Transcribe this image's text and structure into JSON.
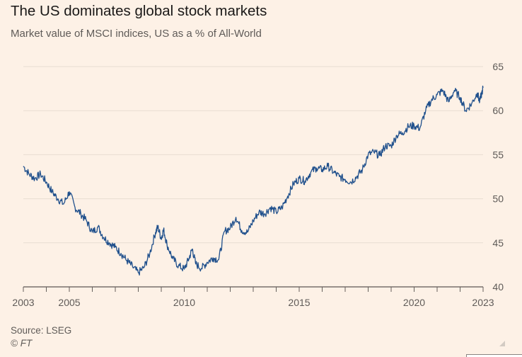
{
  "title": "The US dominates global stock markets",
  "subtitle": "Market value of MSCI indices, US as a % of All-World",
  "footer": {
    "source": "Source: LSEG",
    "credit": "© FT"
  },
  "colors": {
    "background": "#fdf1e6",
    "series": "#20508c",
    "grid": "#e8ddd2",
    "axis": "#33302e"
  },
  "chart_data": {
    "type": "line",
    "title": "The US dominates global stock markets",
    "subtitle": "Market value of MSCI indices, US as a % of All-World",
    "xlabel": "",
    "ylabel": "",
    "xlim": [
      2003,
      2023
    ],
    "ylim": [
      40,
      65
    ],
    "x_ticks": [
      2003,
      2005,
      2010,
      2015,
      2020,
      2023
    ],
    "y_ticks": [
      40,
      45,
      50,
      55,
      60,
      65
    ],
    "y_axis_position": "right",
    "grid": "horizontal",
    "legend": "none",
    "series": [
      {
        "x": [
          2003.0,
          2003.25,
          2003.5,
          2003.75,
          2004.0,
          2004.25,
          2004.5,
          2004.75,
          2005.0,
          2005.25,
          2005.5,
          2005.75,
          2006.0,
          2006.25,
          2006.5,
          2006.75,
          2007.0,
          2007.25,
          2007.5,
          2007.75,
          2008.0,
          2008.25,
          2008.5,
          2008.75,
          2008.85,
          2009.0,
          2009.1,
          2009.25,
          2009.5,
          2009.75,
          2010.0,
          2010.2,
          2010.35,
          2010.5,
          2010.75,
          2011.0,
          2011.25,
          2011.5,
          2011.75,
          2012.0,
          2012.25,
          2012.5,
          2012.75,
          2013.0,
          2013.25,
          2013.5,
          2013.75,
          2014.0,
          2014.25,
          2014.5,
          2014.75,
          2015.0,
          2015.25,
          2015.5,
          2015.75,
          2016.0,
          2016.25,
          2016.5,
          2016.75,
          2017.0,
          2017.25,
          2017.5,
          2017.75,
          2018.0,
          2018.25,
          2018.5,
          2018.75,
          2019.0,
          2019.25,
          2019.5,
          2019.75,
          2020.0,
          2020.25,
          2020.5,
          2020.75,
          2021.0,
          2021.25,
          2021.5,
          2021.75,
          2022.0,
          2022.25,
          2022.5,
          2022.75,
          2022.85,
          2023.0
        ],
        "y": [
          53.7,
          52.8,
          52.3,
          52.8,
          51.9,
          50.8,
          50.0,
          49.4,
          50.8,
          49.0,
          48.3,
          47.5,
          46.2,
          46.8,
          45.6,
          45.0,
          44.5,
          43.8,
          43.0,
          42.3,
          41.6,
          42.2,
          43.8,
          46.2,
          46.8,
          45.5,
          46.5,
          44.8,
          43.2,
          42.4,
          42.0,
          43.2,
          44.3,
          42.6,
          42.1,
          42.8,
          43.3,
          43.1,
          46.3,
          46.7,
          47.9,
          46.4,
          46.2,
          47.5,
          48.5,
          48.3,
          49.0,
          48.5,
          49.0,
          50.3,
          51.7,
          52.3,
          52.0,
          53.0,
          53.5,
          53.3,
          53.7,
          53.0,
          52.5,
          52.2,
          51.9,
          52.5,
          53.3,
          55.0,
          55.3,
          54.9,
          56.0,
          56.0,
          57.2,
          57.5,
          58.2,
          58.3,
          58.0,
          60.0,
          61.2,
          61.8,
          62.3,
          61.0,
          62.3,
          61.5,
          60.0,
          60.8,
          62.0,
          61.0,
          62.6
        ]
      }
    ]
  }
}
